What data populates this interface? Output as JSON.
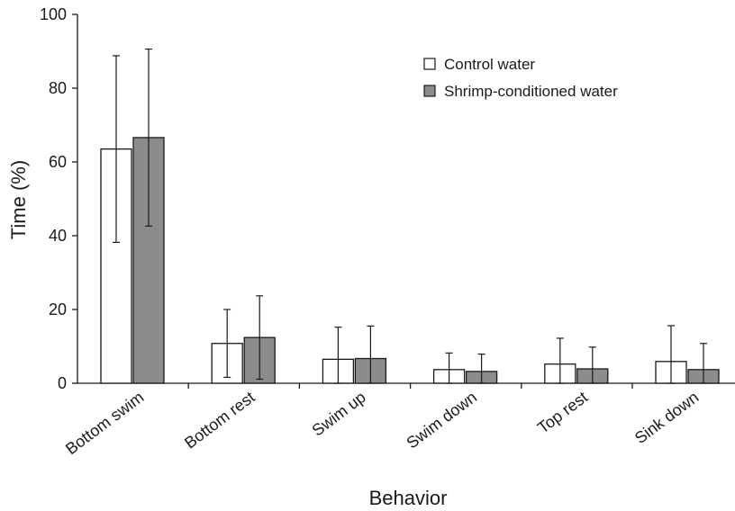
{
  "chart_data": {
    "type": "bar",
    "categories": [
      "Bottom swim",
      "Bottom rest",
      "Swim up",
      "Swim down",
      "Top rest",
      "Sink down"
    ],
    "series": [
      {
        "name": "Control water",
        "color": "#ffffff",
        "values": [
          63.5,
          10.8,
          6.5,
          3.7,
          5.2,
          5.9
        ],
        "errors": [
          25.3,
          9.2,
          8.7,
          4.5,
          7.0,
          9.7
        ]
      },
      {
        "name": "Shrimp-conditioned water",
        "color": "#8c8c8c",
        "values": [
          66.6,
          12.4,
          6.7,
          3.2,
          3.9,
          3.7
        ],
        "errors": [
          24.0,
          11.3,
          8.8,
          4.7,
          5.9,
          7.1
        ]
      }
    ],
    "xlabel": "Behavior",
    "ylabel": "Time (%)",
    "ylim": [
      0,
      100
    ],
    "yticks": [
      "0",
      "20",
      "40",
      "60",
      "80",
      "100"
    ],
    "grid": false,
    "legend_position": "top-right"
  }
}
